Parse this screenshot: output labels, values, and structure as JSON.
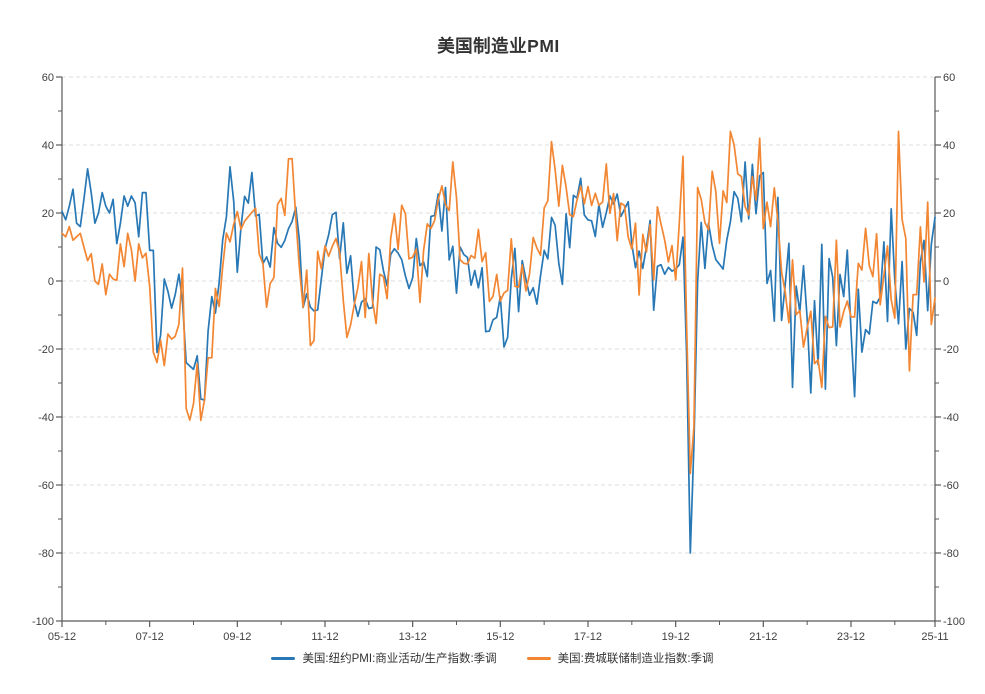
{
  "header": {
    "title": "美国制造业PMI"
  },
  "legend": {
    "items": [
      {
        "label": "美国:纽约PMI:商业活动/生产指数:季调",
        "color": "#2878B5"
      },
      {
        "label": "美国:费城联储制造业指数:季调",
        "color": "#F28632"
      }
    ]
  },
  "colors": {
    "series_blue": "#2878B5",
    "series_orange": "#F28632",
    "axis": "#595959",
    "grid": "#DCDCDC",
    "tick_label": "#404040",
    "title_text": "#333333",
    "background": "#FFFFFF"
  },
  "chart_data": {
    "type": "line",
    "title": "美国制造业PMI",
    "xlabel": "",
    "ylabel": "",
    "x_start": "2005-12",
    "x_end": "2025-11",
    "x_tick_labels": [
      "05-12",
      "07-12",
      "09-12",
      "11-12",
      "13-12",
      "15-12",
      "17-12",
      "19-12",
      "21-12",
      "23-12",
      "25-11"
    ],
    "x_major_tick_months": [
      0,
      24,
      48,
      72,
      96,
      120,
      144,
      168,
      192,
      216,
      239
    ],
    "x_minor_tick_months": [
      12,
      36,
      60,
      84,
      108,
      132,
      156,
      180,
      204,
      228
    ],
    "ylim": [
      -100,
      60
    ],
    "y_ticks": [
      60,
      40,
      20,
      0,
      -20,
      -40,
      -60,
      -80,
      -100
    ],
    "y_minor_ticks": [
      50,
      30,
      10,
      -10,
      -30,
      -50,
      -70,
      -90
    ],
    "grid": "horizontal-dashed",
    "legend_position": "bottom",
    "series": [
      {
        "name": "美国:纽约PMI:商业活动/生产指数:季调",
        "color": "#2878B5",
        "values": [
          20.5,
          18,
          22,
          27,
          17,
          16,
          24,
          33,
          26,
          17,
          20,
          26,
          22,
          20,
          24,
          11,
          17,
          25,
          22,
          25,
          23,
          13,
          26,
          26,
          9,
          9,
          -21,
          -16,
          0.6,
          -3,
          -8,
          -4,
          2,
          -6,
          -24,
          -25,
          -26,
          -22,
          -34.7,
          -35,
          -14.7,
          -4.6,
          -9.4,
          -0.6,
          12.1,
          18.9,
          33.6,
          23.5,
          2.6,
          15.9,
          24.9,
          22.9,
          31.9,
          19.1,
          19.6,
          5.1,
          7.1,
          4.1,
          15.7,
          11.1,
          9.9,
          11.9,
          15.4,
          17.5,
          21.7,
          11.9,
          -7.8,
          -3.8,
          -7.7,
          -8.8,
          -8.5,
          0.6,
          9.5,
          13.5,
          19.5,
          20.2,
          6.6,
          17.1,
          2.3,
          7.4,
          -5.9,
          -10.4,
          -6.2,
          -5.2,
          -8.1,
          -7.8,
          10,
          9.2,
          3.1,
          -1.4,
          7.8,
          9.5,
          8.2,
          6.3,
          1.5,
          -2.2,
          1,
          12.5,
          4.5,
          5.6,
          1.3,
          19,
          19.3,
          25.6,
          14.7,
          27.5,
          6.2,
          10.2,
          -3.6,
          10,
          7.8,
          6.9,
          -1.2,
          3.1,
          -2,
          3.9,
          -14.9,
          -14.7,
          -11.4,
          -10.7,
          -4.6,
          -19.4,
          -16.6,
          0.6,
          9.6,
          -9,
          6,
          0.6,
          -4.2,
          -2,
          -6.8,
          1.5,
          9,
          6.5,
          18.7,
          16.4,
          5.2,
          -1,
          19.8,
          9.8,
          25.2,
          24.4,
          30.2,
          19.4,
          18,
          17.7,
          13.1,
          22.5,
          15.8,
          20.1,
          25,
          22.6,
          25.6,
          19,
          21.1,
          23.3,
          10.9,
          3.9,
          8.8,
          3.7,
          10.1,
          17.8,
          -8.6,
          4.3,
          4.8,
          2,
          4,
          2.9,
          3.5,
          4.8,
          12.9,
          -21.5,
          -80,
          -48.5,
          -0.2,
          17.2,
          3.7,
          17,
          10.5,
          6.3,
          4.9,
          3.5,
          12.1,
          17.4,
          26.3,
          24.3,
          17.4,
          35,
          18.3,
          34.3,
          19.8,
          30.9,
          31.9,
          -0.7,
          3.1,
          -11.8,
          24.6,
          -11.6,
          -1.2,
          11.1,
          -31.3,
          -1.5,
          -9.1,
          4.5,
          -11.2,
          -32.9,
          -5.8,
          -24.6,
          10.8,
          -31.8,
          6.6,
          1.1,
          -19,
          1.9,
          -4.6,
          9.1,
          -14.5,
          -34,
          -2.4,
          -20.9,
          -14.3,
          -15.6,
          -6,
          -6.6,
          -4.7,
          11.5,
          -11.9,
          21.2,
          0.2,
          -12.6,
          5.7,
          -20,
          -8.1,
          -9.2,
          -16,
          5.5,
          11.9,
          -8.7,
          10.7,
          18.7
        ]
      },
      {
        "name": "美国:费城联储制造业指数:季调",
        "color": "#F28632",
        "values": [
          14,
          13,
          16,
          12,
          13,
          14,
          10,
          6,
          8,
          0,
          -1,
          5,
          -4,
          2,
          0.6,
          0.2,
          10.9,
          4.2,
          14,
          9.2,
          0,
          10.9,
          6.8,
          8.2,
          -1.6,
          -20.9,
          -24,
          -17.4,
          -24.9,
          -15.6,
          -17.1,
          -16.3,
          -12.7,
          3.8,
          -37.5,
          -40.9,
          -36.1,
          -24.3,
          -41,
          -35,
          -22.6,
          -22.6,
          -2.2,
          -7.5,
          4.2,
          14.1,
          11.5,
          16.7,
          20.4,
          15.2,
          17.6,
          18.9,
          20.2,
          21.4,
          8,
          5.1,
          -7.7,
          -0.7,
          1,
          22.5,
          24.3,
          19.3,
          35.9,
          36,
          18.5,
          3.9,
          -7.7,
          3.2,
          -19,
          -17.5,
          8.7,
          3.6,
          10.3,
          7.3,
          10.2,
          12.5,
          8.5,
          -5.8,
          -16.6,
          -12.9,
          -7.1,
          -1.9,
          5.7,
          -10.7,
          8.1,
          -5.8,
          -12.5,
          2,
          1.3,
          -5.2,
          12.5,
          19.8,
          9.3,
          22.3,
          19.8,
          6.5,
          7,
          9.4,
          -6.3,
          9,
          16.8,
          15.4,
          17.8,
          23.9,
          28,
          22.5,
          20.7,
          35,
          24.5,
          6.3,
          5.2,
          5,
          7.5,
          6.7,
          15.2,
          5.7,
          8.3,
          -6,
          -4.5,
          1.9,
          -5.9,
          -3.5,
          -2.8,
          12.4,
          -1.6,
          -1.8,
          4.7,
          -2.9,
          2,
          12.8,
          9.7,
          7.6,
          21.5,
          23.6,
          41,
          32.8,
          22,
          34,
          27.6,
          19.5,
          18.9,
          23.8,
          27.9,
          22.7,
          27.8,
          22.2,
          25.8,
          22.3,
          23.2,
          34.4,
          19.9,
          25.7,
          11.9,
          22.9,
          22.2,
          12.9,
          9.4,
          17,
          -4.1,
          13.7,
          8.5,
          16.6,
          0.3,
          21.8,
          16.8,
          12,
          5.6,
          10.4,
          0.3,
          17,
          36.7,
          -12.7,
          -56.6,
          -43.1,
          27.5,
          24.1,
          17.2,
          15,
          32.3,
          26.3,
          11.1,
          26.5,
          23.1,
          44,
          40,
          31.5,
          30.7,
          21.9,
          19.4,
          30.7,
          23.8,
          42,
          15.4,
          23.2,
          16,
          27.4,
          17.6,
          2.6,
          -3.3,
          -12.3,
          6.2,
          -9.9,
          -8.7,
          -19.4,
          -13.7,
          -8.9,
          -24.3,
          -23.2,
          -31.3,
          -10.4,
          -13.7,
          -13.5,
          12,
          -13.5,
          -9,
          -5.9,
          -10.5,
          -10.6,
          5.2,
          3.2,
          15.5,
          4.5,
          1.3,
          13.9,
          -7,
          1.7,
          10.3,
          -5.5,
          -10.9,
          44,
          18.1,
          12.5,
          -26.4,
          -4,
          -4,
          15.9,
          -0.3,
          23.2,
          -12.8,
          -5
        ]
      }
    ]
  }
}
